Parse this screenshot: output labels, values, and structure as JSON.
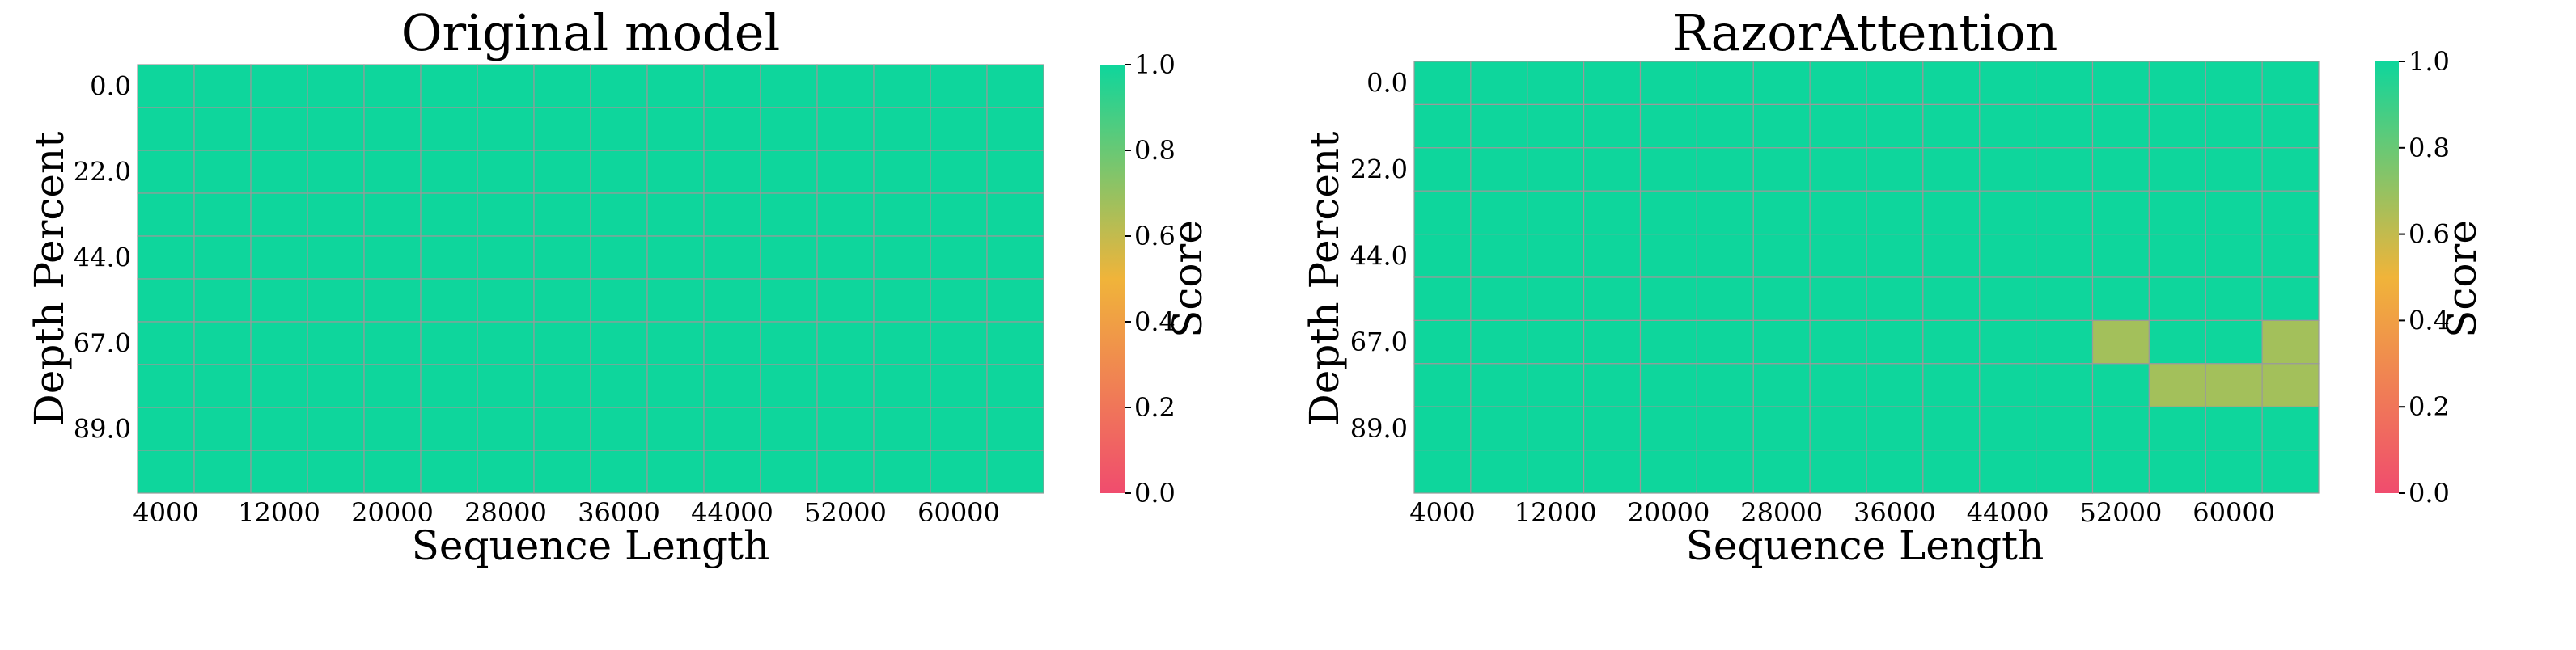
{
  "colors": {
    "high": "#0ed69c",
    "mid": "#f0b43a",
    "low": "#f04c6e",
    "grid": "#9a9a9a"
  },
  "chart_data": [
    {
      "type": "heatmap",
      "title": "Original model",
      "xlabel": "Sequence Length",
      "ylabel": "Depth Percent",
      "colorbar_label": "Score",
      "colorbar_ticks": [
        "0.0",
        "0.2",
        "0.4",
        "0.6",
        "0.8",
        "1.0"
      ],
      "x_tick_labels": [
        "4000",
        "12000",
        "20000",
        "28000",
        "36000",
        "44000",
        "52000",
        "60000"
      ],
      "y_tick_labels": [
        "0.0",
        "22.0",
        "44.0",
        "67.0",
        "89.0"
      ],
      "vmin": 0,
      "vmax": 1,
      "values": [
        [
          1,
          1,
          1,
          1,
          1,
          1,
          1,
          1,
          1,
          1,
          1,
          1,
          1,
          1,
          1,
          1
        ],
        [
          1,
          1,
          1,
          1,
          1,
          1,
          1,
          1,
          1,
          1,
          1,
          1,
          1,
          1,
          1,
          1
        ],
        [
          1,
          1,
          1,
          1,
          1,
          1,
          1,
          1,
          1,
          1,
          1,
          1,
          1,
          1,
          1,
          1
        ],
        [
          1,
          1,
          1,
          1,
          1,
          1,
          1,
          1,
          1,
          1,
          1,
          1,
          1,
          1,
          1,
          1
        ],
        [
          1,
          1,
          1,
          1,
          1,
          1,
          1,
          1,
          1,
          1,
          1,
          1,
          1,
          1,
          1,
          1
        ],
        [
          1,
          1,
          1,
          1,
          1,
          1,
          1,
          1,
          1,
          1,
          1,
          1,
          1,
          1,
          1,
          1
        ],
        [
          1,
          1,
          1,
          1,
          1,
          1,
          1,
          1,
          1,
          1,
          1,
          1,
          1,
          1,
          1,
          1
        ],
        [
          1,
          1,
          1,
          1,
          1,
          1,
          1,
          1,
          1,
          1,
          1,
          1,
          1,
          1,
          1,
          1
        ],
        [
          1,
          1,
          1,
          1,
          1,
          1,
          1,
          1,
          1,
          1,
          1,
          1,
          1,
          1,
          1,
          1
        ],
        [
          1,
          1,
          1,
          1,
          1,
          1,
          1,
          1,
          1,
          1,
          1,
          1,
          1,
          1,
          1,
          1
        ]
      ]
    },
    {
      "type": "heatmap",
      "title": "RazorAttention",
      "xlabel": "Sequence Length",
      "ylabel": "Depth Percent",
      "colorbar_label": "Score",
      "colorbar_ticks": [
        "0.0",
        "0.2",
        "0.4",
        "0.6",
        "0.8",
        "1.0"
      ],
      "x_tick_labels": [
        "4000",
        "12000",
        "20000",
        "28000",
        "36000",
        "44000",
        "52000",
        "60000"
      ],
      "y_tick_labels": [
        "0.0",
        "22.0",
        "44.0",
        "67.0",
        "89.0"
      ],
      "vmin": 0,
      "vmax": 1,
      "values": [
        [
          1,
          1,
          1,
          1,
          1,
          1,
          1,
          1,
          1,
          1,
          1,
          1,
          1,
          1,
          1,
          1
        ],
        [
          1,
          1,
          1,
          1,
          1,
          1,
          1,
          1,
          1,
          1,
          1,
          1,
          1,
          1,
          1,
          1
        ],
        [
          1,
          1,
          1,
          1,
          1,
          1,
          1,
          1,
          1,
          1,
          1,
          1,
          1,
          1,
          1,
          1
        ],
        [
          1,
          1,
          1,
          1,
          1,
          1,
          1,
          1,
          1,
          1,
          1,
          1,
          1,
          1,
          1,
          1
        ],
        [
          1,
          1,
          1,
          1,
          1,
          1,
          1,
          1,
          1,
          1,
          1,
          1,
          1,
          1,
          1,
          1
        ],
        [
          1,
          1,
          1,
          1,
          1,
          1,
          1,
          1,
          1,
          1,
          1,
          1,
          1,
          1,
          1,
          1
        ],
        [
          1,
          1,
          1,
          1,
          1,
          1,
          1,
          1,
          1,
          1,
          1,
          1,
          0.67,
          1,
          1,
          0.67
        ],
        [
          1,
          1,
          1,
          1,
          1,
          1,
          1,
          1,
          1,
          1,
          1,
          1,
          1,
          0.67,
          0.67,
          0.67
        ],
        [
          1,
          1,
          1,
          1,
          1,
          1,
          1,
          1,
          1,
          1,
          1,
          1,
          1,
          1,
          1,
          1
        ],
        [
          1,
          1,
          1,
          1,
          1,
          1,
          1,
          1,
          1,
          1,
          1,
          1,
          1,
          1,
          1,
          1
        ]
      ]
    }
  ]
}
